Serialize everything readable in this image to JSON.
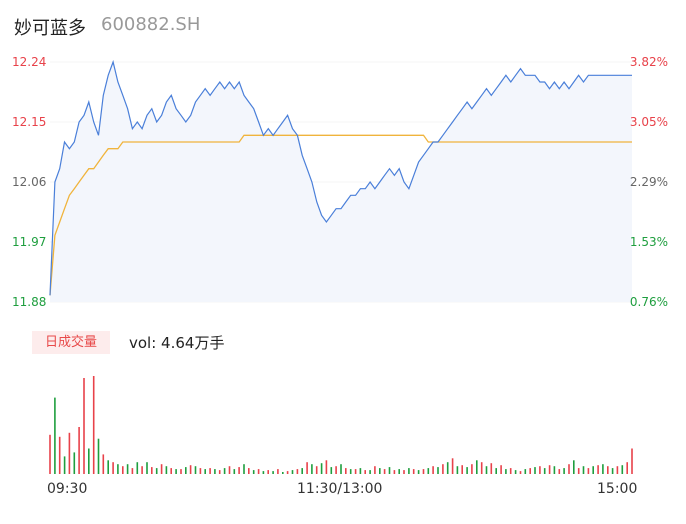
{
  "header": {
    "name": "妙可蓝多",
    "code": "600882.SH"
  },
  "colors": {
    "up": "#e8424a",
    "down": "#1e9e3e",
    "price_line": "#4a7fd9",
    "avg_line": "#f0b43c",
    "area_fill": "#f3f6fc"
  },
  "price_axis": {
    "left_ticks": [
      "12.24",
      "12.15",
      "12.06",
      "11.97",
      "11.88"
    ],
    "right_ticks": [
      "3.82%",
      "3.05%",
      "2.29%",
      "1.53%",
      "0.76%"
    ]
  },
  "volume_panel": {
    "tab_label": "日成交量",
    "vol_text": "vol: 4.64万手"
  },
  "x_axis": {
    "labels": [
      "09:30",
      "11:30/13:00",
      "15:00"
    ]
  },
  "chart_data": [
    {
      "type": "line",
      "title": "",
      "ylim": [
        11.88,
        12.24
      ],
      "x": [
        0,
        2,
        4,
        6,
        8,
        10,
        12,
        14,
        16,
        18,
        20,
        22,
        24,
        26,
        28,
        30,
        32,
        34,
        36,
        38,
        40,
        42,
        44,
        46,
        48,
        50,
        52,
        54,
        56,
        58,
        60,
        62,
        64,
        66,
        68,
        70,
        72,
        74,
        76,
        78,
        80,
        82,
        84,
        86,
        88,
        90,
        92,
        94,
        96,
        98,
        100,
        102,
        104,
        106,
        108,
        110,
        112,
        114,
        116,
        118,
        120,
        122,
        124,
        126,
        128,
        130,
        132,
        134,
        136,
        138,
        140,
        142,
        144,
        146,
        148,
        150,
        152,
        154,
        156,
        158,
        160,
        162,
        164,
        166,
        168,
        170,
        172,
        174,
        176,
        178,
        180,
        182,
        184,
        186,
        188,
        190,
        192,
        194,
        196,
        198,
        200,
        202,
        204,
        206,
        208,
        210,
        212,
        214,
        216,
        218,
        220,
        222,
        224,
        226,
        228,
        230,
        232,
        234,
        236,
        238,
        240
      ],
      "series": [
        {
          "values": [
            11.89,
            12.06,
            12.08,
            12.12,
            12.11,
            12.12,
            12.15,
            12.16,
            12.18,
            12.15,
            12.13,
            12.19,
            12.22,
            12.24,
            12.21,
            12.19,
            12.17,
            12.14,
            12.15,
            12.14,
            12.16,
            12.17,
            12.15,
            12.16,
            12.18,
            12.19,
            12.17,
            12.16,
            12.15,
            12.16,
            12.18,
            12.19,
            12.2,
            12.19,
            12.2,
            12.21,
            12.2,
            12.21,
            12.2,
            12.21,
            12.19,
            12.18,
            12.17,
            12.15,
            12.13,
            12.14,
            12.13,
            12.14,
            12.15,
            12.16,
            12.14,
            12.13,
            12.1,
            12.08,
            12.06,
            12.03,
            12.01,
            12.0,
            12.01,
            12.02,
            12.02,
            12.03,
            12.04,
            12.04,
            12.05,
            12.05,
            12.06,
            12.05,
            12.06,
            12.07,
            12.08,
            12.07,
            12.08,
            12.06,
            12.05,
            12.07,
            12.09,
            12.1,
            12.11,
            12.12,
            12.12,
            12.13,
            12.14,
            12.15,
            12.16,
            12.17,
            12.18,
            12.17,
            12.18,
            12.19,
            12.2,
            12.19,
            12.2,
            12.21,
            12.22,
            12.21,
            12.22,
            12.23,
            12.22,
            12.22,
            12.22,
            12.21,
            12.21,
            12.2,
            12.21,
            12.2,
            12.21,
            12.2,
            12.21,
            12.22,
            12.21,
            12.22,
            12.22,
            12.22,
            12.22,
            12.22,
            12.22,
            12.22,
            12.22,
            12.22,
            12.22
          ]
        },
        {
          "values": [
            11.89,
            11.98,
            12.0,
            12.02,
            12.04,
            12.05,
            12.06,
            12.07,
            12.08,
            12.08,
            12.09,
            12.1,
            12.11,
            12.11,
            12.11,
            12.12,
            12.12,
            12.12,
            12.12,
            12.12,
            12.12,
            12.12,
            12.12,
            12.12,
            12.12,
            12.12,
            12.12,
            12.12,
            12.12,
            12.12,
            12.12,
            12.12,
            12.12,
            12.12,
            12.12,
            12.12,
            12.12,
            12.12,
            12.12,
            12.12,
            12.13,
            12.13,
            12.13,
            12.13,
            12.13,
            12.13,
            12.13,
            12.13,
            12.13,
            12.13,
            12.13,
            12.13,
            12.13,
            12.13,
            12.13,
            12.13,
            12.13,
            12.13,
            12.13,
            12.13,
            12.13,
            12.13,
            12.13,
            12.13,
            12.13,
            12.13,
            12.13,
            12.13,
            12.13,
            12.13,
            12.13,
            12.13,
            12.13,
            12.13,
            12.13,
            12.13,
            12.13,
            12.13,
            12.12,
            12.12,
            12.12,
            12.12,
            12.12,
            12.12,
            12.12,
            12.12,
            12.12,
            12.12,
            12.12,
            12.12,
            12.12,
            12.12,
            12.12,
            12.12,
            12.12,
            12.12,
            12.12,
            12.12,
            12.12,
            12.12,
            12.12,
            12.12,
            12.12,
            12.12,
            12.12,
            12.12,
            12.12,
            12.12,
            12.12,
            12.12,
            12.12,
            12.12,
            12.12,
            12.12,
            12.12,
            12.12,
            12.12,
            12.12,
            12.12,
            12.12,
            12.12
          ]
        }
      ]
    },
    {
      "type": "bar",
      "title": "",
      "x": [
        0,
        2,
        4,
        6,
        8,
        10,
        12,
        14,
        16,
        18,
        20,
        22,
        24,
        26,
        28,
        30,
        32,
        34,
        36,
        38,
        40,
        42,
        44,
        46,
        48,
        50,
        52,
        54,
        56,
        58,
        60,
        62,
        64,
        66,
        68,
        70,
        72,
        74,
        76,
        78,
        80,
        82,
        84,
        86,
        88,
        90,
        92,
        94,
        96,
        98,
        100,
        102,
        104,
        106,
        108,
        110,
        112,
        114,
        116,
        118,
        120,
        122,
        124,
        126,
        128,
        130,
        132,
        134,
        136,
        138,
        140,
        142,
        144,
        146,
        148,
        150,
        152,
        154,
        156,
        158,
        160,
        162,
        164,
        166,
        168,
        170,
        172,
        174,
        176,
        178,
        180,
        182,
        184,
        186,
        188,
        190,
        192,
        194,
        196,
        198,
        200,
        202,
        204,
        206,
        208,
        210,
        212,
        214,
        216,
        218,
        220,
        222,
        224,
        226,
        228,
        230,
        232,
        234,
        236,
        238,
        240
      ],
      "values": [
        40,
        78,
        38,
        18,
        42,
        22,
        48,
        98,
        26,
        100,
        36,
        20,
        14,
        12,
        10,
        8,
        10,
        6,
        12,
        8,
        12,
        7,
        6,
        10,
        8,
        6,
        5,
        5,
        7,
        9,
        8,
        6,
        5,
        6,
        5,
        4,
        6,
        8,
        5,
        7,
        10,
        6,
        4,
        5,
        3,
        4,
        3,
        5,
        2,
        3,
        4,
        5,
        6,
        12,
        10,
        8,
        11,
        14,
        7,
        8,
        10,
        6,
        5,
        5,
        6,
        4,
        4,
        8,
        6,
        5,
        7,
        4,
        5,
        4,
        6,
        5,
        4,
        5,
        6,
        8,
        7,
        10,
        12,
        16,
        8,
        9,
        7,
        10,
        14,
        12,
        8,
        11,
        6,
        9,
        5,
        6,
        4,
        3,
        5,
        6,
        7,
        8,
        6,
        9,
        8,
        5,
        6,
        10,
        14,
        6,
        8,
        6,
        8,
        9,
        10,
        8,
        6,
        8,
        9,
        12,
        26
      ],
      "colors": [
        "u",
        "d",
        "u",
        "d",
        "u",
        "d",
        "u",
        "u",
        "d",
        "u",
        "d",
        "u",
        "d",
        "u",
        "d",
        "u",
        "d",
        "u",
        "d",
        "u",
        "d",
        "u",
        "d",
        "u",
        "d",
        "u",
        "d",
        "u",
        "d",
        "u",
        "d",
        "u",
        "d",
        "u",
        "d",
        "u",
        "d",
        "u",
        "d",
        "u",
        "d",
        "u",
        "d",
        "u",
        "d",
        "u",
        "d",
        "u",
        "d",
        "u",
        "d",
        "u",
        "d",
        "u",
        "d",
        "u",
        "d",
        "u",
        "d",
        "u",
        "d",
        "u",
        "d",
        "u",
        "d",
        "u",
        "d",
        "u",
        "d",
        "u",
        "d",
        "u",
        "d",
        "u",
        "d",
        "u",
        "d",
        "u",
        "d",
        "u",
        "d",
        "u",
        "d",
        "u",
        "d",
        "u",
        "d",
        "u",
        "d",
        "u",
        "d",
        "u",
        "d",
        "u",
        "d",
        "u",
        "d",
        "u",
        "d",
        "u",
        "d",
        "u",
        "d",
        "u",
        "d",
        "u",
        "d",
        "u",
        "d",
        "u",
        "d",
        "u",
        "d",
        "u",
        "d",
        "u",
        "d",
        "u",
        "d",
        "u",
        "u"
      ]
    }
  ]
}
